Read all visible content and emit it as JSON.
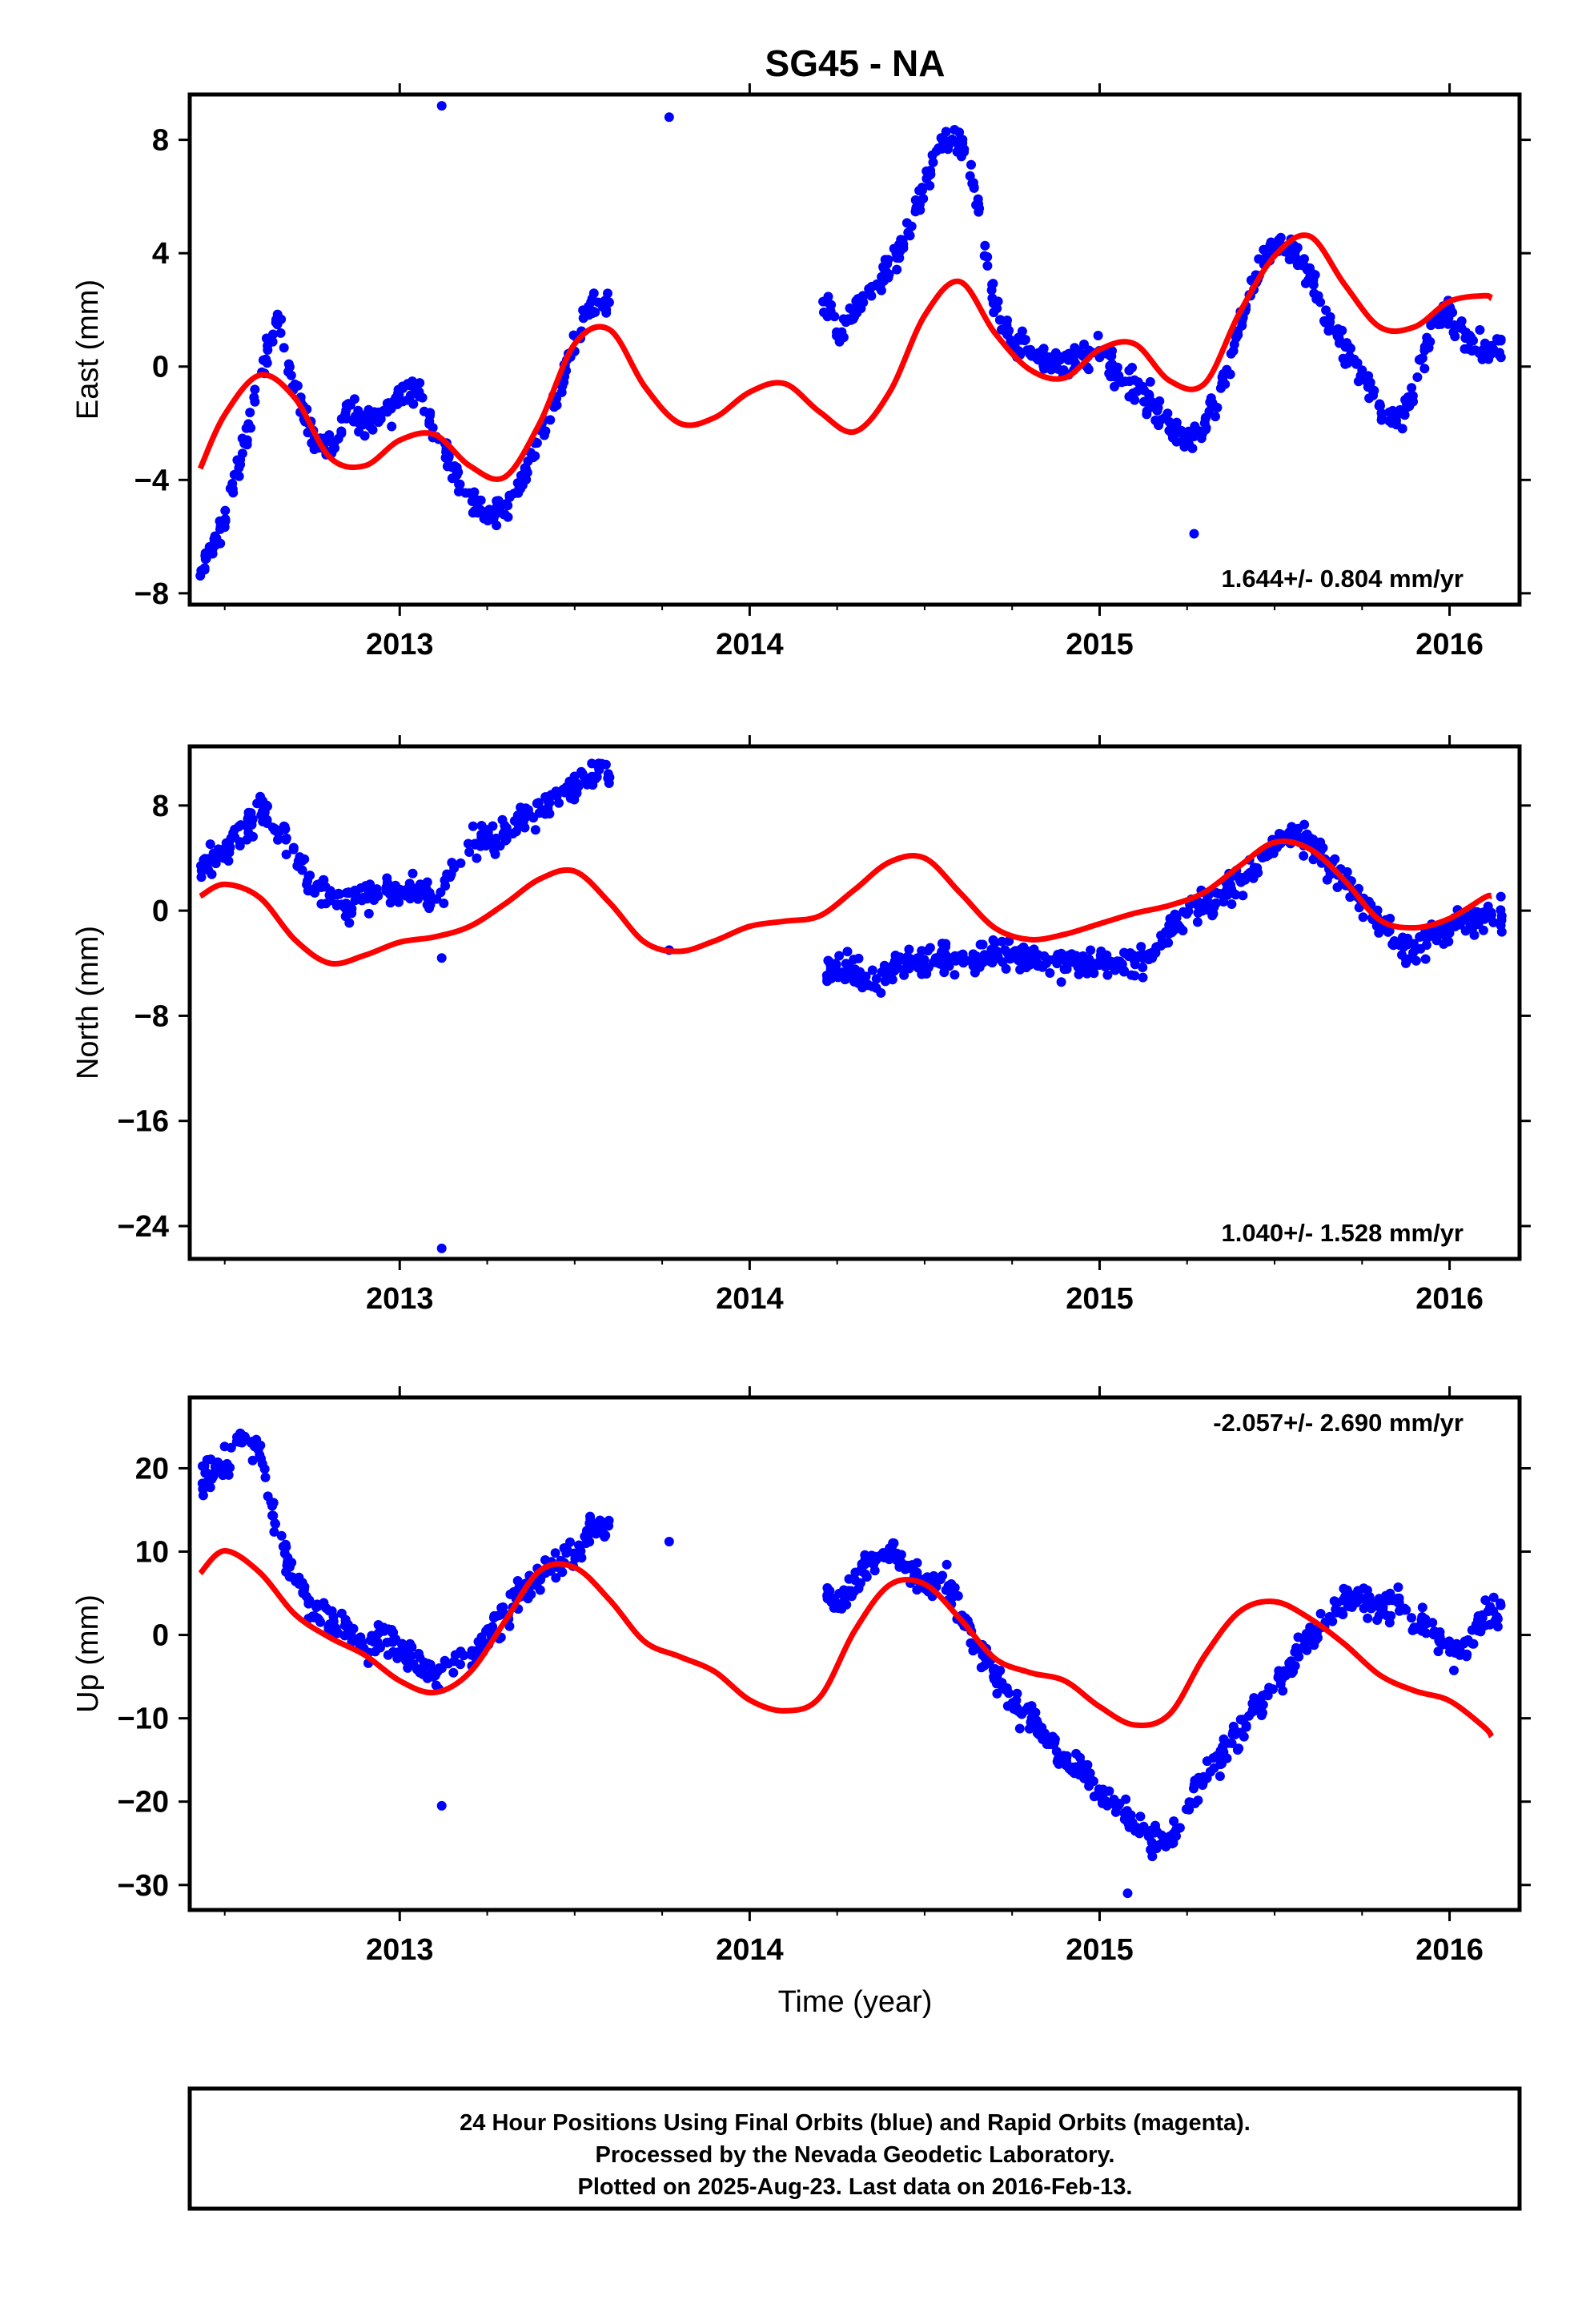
{
  "title": "SG45 - NA",
  "colors": {
    "points": "#0000ff",
    "fit": "#ff0000",
    "frame": "#000000"
  },
  "xlabel": "Time (year)",
  "footer": {
    "line1": "24 Hour Positions Using Final Orbits (blue) and Rapid Orbits (magenta).",
    "line2": "Processed by the Nevada Geodetic Laboratory.",
    "line3": "Plotted on 2025-Aug-23. Last data on 2016-Feb-13."
  },
  "chart_data": [
    {
      "type": "scatter",
      "ylabel": "East (mm)",
      "rate": "1.644+/- 0.804 mm/yr",
      "rate_position": "bottom-right",
      "xlim": [
        2012.4,
        2016.2
      ],
      "ylim": [
        -8.4,
        9.6
      ],
      "xticks": [
        2013,
        2014,
        2015,
        2016
      ],
      "xtick_labels": [
        "2013",
        "2014",
        "2015",
        "2016"
      ],
      "yticks": [
        -8,
        -4,
        0,
        4,
        8
      ],
      "ytick_labels": [
        "−8",
        "−4",
        "0",
        "4",
        "8"
      ],
      "fit": {
        "x": [
          2012.43,
          2012.5,
          2012.6,
          2012.7,
          2012.8,
          2012.9,
          2013.0,
          2013.1,
          2013.2,
          2013.3,
          2013.4,
          2013.5,
          2013.6,
          2013.7,
          2013.8,
          2013.9,
          2014.0,
          2014.1,
          2014.2,
          2014.3,
          2014.4,
          2014.5,
          2014.6,
          2014.7,
          2014.8,
          2014.9,
          2015.0,
          2015.1,
          2015.2,
          2015.3,
          2015.4,
          2015.5,
          2015.6,
          2015.7,
          2015.8,
          2015.9,
          2016.0,
          2016.1,
          2016.12
        ],
        "y": [
          -3.6,
          -1.7,
          -0.3,
          -1.1,
          -3.2,
          -3.5,
          -2.6,
          -2.4,
          -3.5,
          -3.9,
          -2.0,
          0.8,
          1.3,
          -0.7,
          -2.0,
          -1.8,
          -0.9,
          -0.6,
          -1.6,
          -2.3,
          -0.9,
          1.8,
          3.0,
          1.2,
          -0.1,
          -0.4,
          0.6,
          0.8,
          -0.5,
          -0.6,
          1.9,
          3.9,
          4.6,
          2.9,
          1.4,
          1.4,
          2.3,
          2.5,
          2.4
        ]
      },
      "series": [
        {
          "name": "",
          "x": [
            2012.43,
            2012.46,
            2012.5,
            2012.55,
            2012.6,
            2012.65,
            2012.7,
            2012.75,
            2012.8,
            2012.85,
            2012.9,
            2012.95,
            2013.0,
            2013.05,
            2013.1,
            2013.15,
            2013.2,
            2013.25,
            2013.3,
            2013.35,
            2013.4,
            2013.45,
            2013.5,
            2013.55,
            2014.2,
            2014.25,
            2014.3,
            2014.35,
            2014.4,
            2014.45,
            2014.5,
            2014.55,
            2014.6,
            2014.65,
            2014.7,
            2014.75,
            2014.8,
            2014.85,
            2014.9,
            2014.95,
            2015.0,
            2015.05,
            2015.1,
            2015.15,
            2015.2,
            2015.25,
            2015.3,
            2015.35,
            2015.4,
            2015.45,
            2015.5,
            2015.55,
            2015.6,
            2015.65,
            2015.7,
            2015.75,
            2015.8,
            2015.85,
            2015.9,
            2015.95,
            2016.0,
            2016.05,
            2016.1
          ],
          "y": [
            -7.2,
            -6.5,
            -5.5,
            -3.0,
            -0.5,
            1.8,
            -1.0,
            -2.3,
            -3.0,
            -1.5,
            -2.0,
            -1.7,
            -1.0,
            -0.6,
            -2.5,
            -3.5,
            -4.6,
            -5.3,
            -5.0,
            -4.2,
            -2.2,
            -1.2,
            1.0,
            2.2,
            2.5,
            1.2,
            1.8,
            2.7,
            3.5,
            4.6,
            6.5,
            7.8,
            8.2,
            6.0,
            2.0,
            1.0,
            0.4,
            0.2,
            0.1,
            0.6,
            0.5,
            -0.3,
            -0.6,
            -1.3,
            -2.0,
            -2.6,
            -2.2,
            -0.7,
            1.5,
            3.2,
            4.4,
            4.1,
            3.3,
            1.6,
            0.7,
            -0.3,
            -1.3,
            -1.8,
            -0.9,
            1.5,
            1.9,
            1.0,
            0.6
          ]
        }
      ],
      "outliers": [
        {
          "x": 2013.12,
          "y": 9.2
        },
        {
          "x": 2013.77,
          "y": 8.8
        },
        {
          "x": 2015.27,
          "y": -5.9
        }
      ]
    },
    {
      "type": "scatter",
      "ylabel": "North (mm)",
      "rate": "1.040+/- 1.528 mm/yr",
      "rate_position": "bottom-right",
      "xlim": [
        2012.4,
        2016.2
      ],
      "ylim": [
        -26.5,
        12.5
      ],
      "xticks": [
        2013,
        2014,
        2015,
        2016
      ],
      "xtick_labels": [
        "2013",
        "2014",
        "2015",
        "2016"
      ],
      "yticks": [
        -24,
        -16,
        -8,
        0,
        8
      ],
      "ytick_labels": [
        "−24",
        "−16",
        "−8",
        "0",
        "8"
      ],
      "fit": {
        "x": [
          2012.43,
          2012.5,
          2012.6,
          2012.7,
          2012.8,
          2012.9,
          2013.0,
          2013.1,
          2013.2,
          2013.3,
          2013.4,
          2013.5,
          2013.6,
          2013.7,
          2013.8,
          2013.9,
          2014.0,
          2014.1,
          2014.2,
          2014.3,
          2014.4,
          2014.5,
          2014.6,
          2014.7,
          2014.8,
          2014.9,
          2015.0,
          2015.1,
          2015.2,
          2015.3,
          2015.4,
          2015.5,
          2015.6,
          2015.7,
          2015.8,
          2015.9,
          2016.0,
          2016.1,
          2016.12
        ],
        "y": [
          1.1,
          2.0,
          1.0,
          -2.2,
          -4.0,
          -3.4,
          -2.4,
          -2.0,
          -1.2,
          0.5,
          2.4,
          3.0,
          0.6,
          -2.4,
          -3.1,
          -2.3,
          -1.2,
          -0.8,
          -0.4,
          1.6,
          3.7,
          4.0,
          1.4,
          -1.3,
          -2.2,
          -1.8,
          -1.0,
          -0.2,
          0.4,
          1.4,
          3.4,
          5.2,
          4.7,
          2.3,
          -0.7,
          -1.3,
          -0.6,
          1.0,
          1.1
        ]
      },
      "series": [
        {
          "name": "",
          "x": [
            2012.43,
            2012.46,
            2012.5,
            2012.55,
            2012.6,
            2012.65,
            2012.7,
            2012.75,
            2012.8,
            2012.85,
            2012.9,
            2012.95,
            2013.0,
            2013.05,
            2013.1,
            2013.2,
            2013.25,
            2013.3,
            2013.35,
            2013.4,
            2013.45,
            2013.5,
            2013.55,
            2014.22,
            2014.25,
            2014.3,
            2014.35,
            2014.4,
            2014.45,
            2014.5,
            2014.55,
            2014.6,
            2014.65,
            2014.7,
            2014.75,
            2014.8,
            2014.85,
            2014.9,
            2014.95,
            2015.0,
            2015.05,
            2015.1,
            2015.15,
            2015.2,
            2015.25,
            2015.3,
            2015.35,
            2015.4,
            2015.45,
            2015.5,
            2015.55,
            2015.6,
            2015.65,
            2015.7,
            2015.75,
            2015.8,
            2015.85,
            2015.9,
            2015.95,
            2016.0,
            2016.05,
            2016.1
          ],
          "y": [
            3.0,
            4.2,
            4.4,
            6.0,
            8.3,
            6.2,
            4.6,
            2.0,
            1.4,
            0.5,
            1.2,
            1.4,
            1.2,
            1.6,
            0.5,
            4.9,
            5.5,
            6.0,
            6.8,
            7.6,
            8.8,
            9.5,
            10.5,
            -4.8,
            -4.2,
            -4.6,
            -5.8,
            -4.6,
            -4.0,
            -3.9,
            -3.4,
            -3.8,
            -3.8,
            -3.1,
            -3.2,
            -3.8,
            -3.9,
            -4.0,
            -3.9,
            -3.8,
            -3.6,
            -3.8,
            -3.8,
            -1.6,
            0.0,
            0.5,
            1.2,
            2.2,
            3.2,
            5.0,
            6.0,
            5.3,
            3.8,
            2.4,
            0.8,
            -1.0,
            -2.5,
            -3.2,
            -1.7,
            -1.2,
            -0.8,
            -0.4
          ]
        }
      ],
      "outliers": [
        {
          "x": 2013.12,
          "y": -25.7
        },
        {
          "x": 2013.77,
          "y": -3.0
        },
        {
          "x": 2013.12,
          "y": -3.6
        }
      ]
    },
    {
      "type": "scatter",
      "ylabel": "Up (mm)",
      "rate": "-2.057+/- 2.690 mm/yr",
      "rate_position": "top-right",
      "xlim": [
        2012.4,
        2016.2
      ],
      "ylim": [
        -33,
        28.5
      ],
      "xticks": [
        2013,
        2014,
        2015,
        2016
      ],
      "xtick_labels": [
        "2013",
        "2014",
        "2015",
        "2016"
      ],
      "yticks": [
        -30,
        -20,
        -10,
        0,
        10,
        20
      ],
      "ytick_labels": [
        "−30",
        "−20",
        "−10",
        "0",
        "10",
        "20"
      ],
      "fit": {
        "x": [
          2012.43,
          2012.5,
          2012.6,
          2012.7,
          2012.8,
          2012.9,
          2013.0,
          2013.1,
          2013.2,
          2013.3,
          2013.4,
          2013.5,
          2013.6,
          2013.7,
          2013.8,
          2013.9,
          2014.0,
          2014.1,
          2014.2,
          2014.3,
          2014.4,
          2014.5,
          2014.6,
          2014.7,
          2014.8,
          2014.9,
          2015.0,
          2015.1,
          2015.2,
          2015.3,
          2015.4,
          2015.5,
          2015.6,
          2015.7,
          2015.8,
          2015.9,
          2016.0,
          2016.1,
          2016.12
        ],
        "y": [
          7.4,
          10.1,
          7.5,
          2.5,
          -0.3,
          -2.4,
          -5.5,
          -6.9,
          -4.5,
          1.6,
          7.7,
          8.1,
          4.2,
          -0.8,
          -2.6,
          -4.4,
          -7.8,
          -9.1,
          -7.5,
          0.5,
          6.0,
          6.1,
          2.0,
          -2.8,
          -4.5,
          -5.5,
          -8.6,
          -10.8,
          -9.5,
          -2.5,
          2.8,
          4.0,
          2.0,
          -1.1,
          -4.8,
          -6.7,
          -7.9,
          -11.1,
          -12.2
        ]
      },
      "series": [
        {
          "name": "",
          "x": [
            2012.43,
            2012.46,
            2012.5,
            2012.55,
            2012.6,
            2012.65,
            2012.7,
            2012.75,
            2012.8,
            2012.85,
            2012.9,
            2012.95,
            2013.0,
            2013.05,
            2013.1,
            2013.2,
            2013.25,
            2013.3,
            2013.35,
            2013.4,
            2013.45,
            2013.5,
            2013.55,
            2014.22,
            2014.25,
            2014.3,
            2014.35,
            2014.4,
            2014.45,
            2014.5,
            2014.55,
            2014.6,
            2014.65,
            2014.7,
            2014.75,
            2014.8,
            2014.85,
            2014.9,
            2014.95,
            2015.0,
            2015.05,
            2015.1,
            2015.15,
            2015.2,
            2015.25,
            2015.3,
            2015.35,
            2015.4,
            2015.45,
            2015.5,
            2015.55,
            2015.6,
            2015.65,
            2015.7,
            2015.75,
            2015.8,
            2015.85,
            2015.9,
            2015.95,
            2016.0,
            2016.05,
            2016.1
          ],
          "y": [
            18.0,
            19.5,
            20.5,
            24.0,
            22.0,
            12.0,
            7.0,
            3.0,
            1.5,
            1.0,
            -2.0,
            0.5,
            -2.0,
            -3.0,
            -5.0,
            -2.0,
            0.0,
            2.0,
            5.0,
            7.0,
            9.0,
            10.0,
            13.0,
            5.0,
            4.0,
            6.0,
            9.0,
            10.0,
            8.0,
            6.0,
            7.0,
            3.0,
            -1.0,
            -5.0,
            -8.0,
            -10.0,
            -12.0,
            -15.0,
            -16.0,
            -19.0,
            -20.0,
            -23.0,
            -24.0,
            -25.0,
            -21.0,
            -17.0,
            -14.0,
            -12.0,
            -8.0,
            -6.0,
            -3.0,
            0.0,
            2.0,
            4.0,
            5.0,
            3.0,
            4.0,
            1.0,
            0.5,
            -2.0,
            -2.5,
            3.0
          ]
        }
      ],
      "outliers": [
        {
          "x": 2013.12,
          "y": -20.5
        },
        {
          "x": 2013.77,
          "y": 11.2
        },
        {
          "x": 2015.08,
          "y": -31.0
        }
      ]
    }
  ]
}
